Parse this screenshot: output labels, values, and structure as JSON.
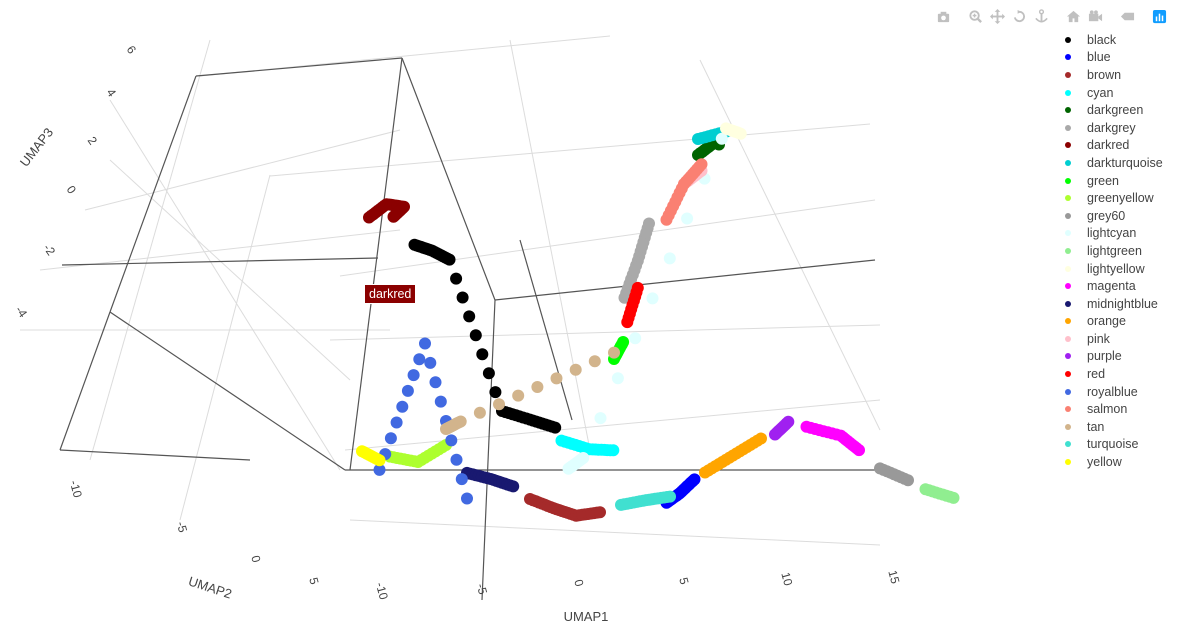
{
  "modebar": {
    "buttons": [
      {
        "name": "camera-icon",
        "glyph": "camera"
      },
      {
        "name": "zoom-icon",
        "glyph": "zoom"
      },
      {
        "name": "pan-icon",
        "glyph": "pan"
      },
      {
        "name": "orbit-rotation-icon",
        "glyph": "orbit"
      },
      {
        "name": "turntable-rotation-icon",
        "glyph": "turntable"
      },
      {
        "name": "reset-camera-icon",
        "glyph": "home"
      },
      {
        "name": "last-saved-view-icon",
        "glyph": "video"
      },
      {
        "name": "toggle-spike-lines-icon",
        "glyph": "spike"
      },
      {
        "name": "plotly-logo-icon",
        "glyph": "plotly"
      }
    ]
  },
  "hover": {
    "label": "darkred",
    "color": "#8b0000"
  },
  "chart_data": {
    "type": "scatter",
    "dimensions": 3,
    "xlabel": "UMAP1",
    "ylabel": "UMAP2",
    "zlabel": "UMAP3",
    "x_ticks": [
      "-10",
      "-5",
      "0",
      "5",
      "10",
      "15"
    ],
    "y_ticks": [
      "-10",
      "-5",
      "0",
      "5"
    ],
    "z_ticks": [
      "6",
      "4",
      "2",
      "0",
      "-2",
      "-4"
    ],
    "grid": true,
    "legend": {
      "placement": "right"
    },
    "series": [
      {
        "name": "black",
        "color": "#000000",
        "points": [
          [
            -7.5,
            0,
            2.5
          ],
          [
            -7,
            0.5,
            2.2
          ],
          [
            -6.5,
            1,
            1.8
          ],
          [
            -4,
            1,
            -2.5
          ],
          [
            -3,
            1.5,
            -2.8
          ],
          [
            -2,
            1.8,
            -3
          ]
        ]
      },
      {
        "name": "blue",
        "color": "#0000ff",
        "points": [
          [
            4.5,
            0,
            -3.5
          ],
          [
            5,
            0.2,
            -3.2
          ],
          [
            5.5,
            0.5,
            -2.8
          ]
        ]
      },
      {
        "name": "brown",
        "color": "#a52a2a",
        "points": [
          [
            -2,
            0,
            -4.5
          ],
          [
            -1,
            0.2,
            -4.7
          ],
          [
            0,
            0.3,
            -4.8
          ],
          [
            1,
            0.5,
            -4.6
          ]
        ]
      },
      {
        "name": "cyan",
        "color": "#00ffff",
        "points": [
          [
            -1.5,
            1.5,
            -3.2
          ],
          [
            -0.5,
            2,
            -3.5
          ],
          [
            0.3,
            2.5,
            -3.6
          ]
        ]
      },
      {
        "name": "darkgreen",
        "color": "#006400",
        "points": [
          [
            2,
            6,
            4.5
          ],
          [
            2.5,
            6.5,
            4.8
          ],
          [
            3,
            6,
            5
          ]
        ]
      },
      {
        "name": "darkgrey",
        "color": "#a9a9a9",
        "points": [
          [
            0.5,
            3,
            1
          ],
          [
            0.8,
            3.5,
            2
          ],
          [
            1,
            4,
            3
          ]
        ]
      },
      {
        "name": "darkred",
        "color": "#8b0000",
        "points": [
          [
            -9,
            -1,
            3.5
          ],
          [
            -8.5,
            -0.5,
            3.8
          ],
          [
            -8,
            0,
            3.6
          ],
          [
            -8.5,
            0,
            3.2
          ]
        ]
      },
      {
        "name": "darkturquoise",
        "color": "#00ced1",
        "points": [
          [
            2,
            6,
            5
          ],
          [
            3,
            6.5,
            5.2
          ]
        ]
      },
      {
        "name": "green",
        "color": "#00ff00",
        "points": [
          [
            0,
            3,
            -1
          ],
          [
            0.3,
            3.2,
            -0.5
          ]
        ]
      },
      {
        "name": "greenyellow",
        "color": "#adff2f",
        "points": [
          [
            -8,
            -1,
            -3.8
          ],
          [
            -7,
            -0.5,
            -4
          ],
          [
            -6,
            0,
            -3.5
          ]
        ]
      },
      {
        "name": "grey60",
        "color": "#999999",
        "points": [
          [
            14,
            1,
            -1.2
          ],
          [
            15,
            1.5,
            -1.6
          ]
        ]
      },
      {
        "name": "lightcyan",
        "color": "#e0ffff",
        "points": [
          [
            -0.5,
            0.5,
            -3.5
          ],
          [
            0,
            0.8,
            -3.2
          ],
          [
            3,
            6.2,
            5.1
          ]
        ]
      },
      {
        "name": "lightgreen",
        "color": "#90ee90",
        "points": [
          [
            15.5,
            2,
            -2
          ],
          [
            16.5,
            2.5,
            -2.3
          ]
        ]
      },
      {
        "name": "lightyellow",
        "color": "#ffffe0",
        "points": [
          [
            3,
            6.5,
            5.3
          ],
          [
            3.5,
            6.8,
            5.1
          ]
        ]
      },
      {
        "name": "magenta",
        "color": "#ff00ff",
        "points": [
          [
            10.5,
            1,
            -0.5
          ],
          [
            12,
            1.2,
            -0.6
          ],
          [
            13,
            1,
            -0.8
          ]
        ]
      },
      {
        "name": "midnightblue",
        "color": "#191970",
        "points": [
          [
            -5,
            0,
            -4.2
          ],
          [
            -4,
            0.2,
            -4.3
          ],
          [
            -3,
            0.3,
            -4.4
          ]
        ]
      },
      {
        "name": "orange",
        "color": "#ffa500",
        "points": [
          [
            6,
            0.5,
            -2.5
          ],
          [
            7,
            1,
            -2
          ],
          [
            8,
            1.5,
            -1.5
          ]
        ]
      },
      {
        "name": "pink",
        "color": "#ffc0cb",
        "points": [
          [
            2,
            5,
            4
          ],
          [
            2.5,
            5.5,
            4.3
          ]
        ]
      },
      {
        "name": "purple",
        "color": "#a020f0",
        "points": [
          [
            9,
            1,
            -1
          ],
          [
            9.5,
            1.2,
            -0.6
          ]
        ]
      },
      {
        "name": "red",
        "color": "#ff0000",
        "points": [
          [
            0.3,
            3.5,
            0
          ],
          [
            0.6,
            3.8,
            1
          ]
        ]
      },
      {
        "name": "royalblue",
        "color": "#4169e1",
        "points": [
          [
            -8.5,
            -1,
            -4.3
          ],
          [
            -7,
            0,
            -0.5
          ],
          [
            -5,
            0,
            -5
          ]
        ]
      },
      {
        "name": "salmon",
        "color": "#fa8072",
        "points": [
          [
            1.5,
            4.5,
            3
          ],
          [
            2,
            5,
            4
          ],
          [
            2.5,
            5.5,
            4.5
          ]
        ]
      },
      {
        "name": "tan",
        "color": "#d2b48c",
        "points": [
          [
            -6,
            0,
            -3
          ],
          [
            -5.5,
            0.3,
            -2.8
          ],
          [
            0,
            3,
            -0.8
          ]
        ]
      },
      {
        "name": "turquoise",
        "color": "#40e0d0",
        "points": [
          [
            2,
            0.5,
            -4.2
          ],
          [
            3,
            0.8,
            -4
          ],
          [
            4,
            1,
            -3.8
          ]
        ]
      },
      {
        "name": "yellow",
        "color": "#ffff00",
        "points": [
          [
            -9,
            -1.5,
            -3.6
          ],
          [
            -8.5,
            -1,
            -4
          ]
        ]
      }
    ]
  }
}
